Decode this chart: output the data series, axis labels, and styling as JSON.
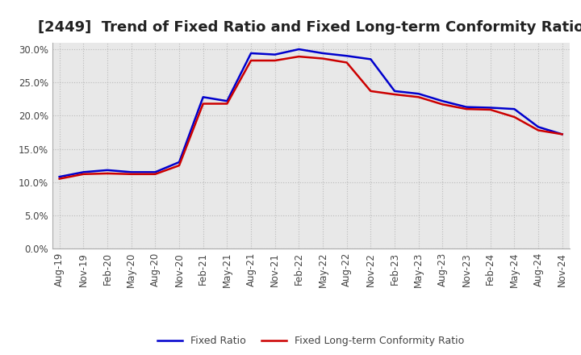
{
  "title": "[2449]  Trend of Fixed Ratio and Fixed Long-term Conformity Ratio",
  "x_labels": [
    "Aug-19",
    "Nov-19",
    "Feb-20",
    "May-20",
    "Aug-20",
    "Nov-20",
    "Feb-21",
    "May-21",
    "Aug-21",
    "Nov-21",
    "Feb-22",
    "May-22",
    "Aug-22",
    "Nov-22",
    "Feb-23",
    "May-23",
    "Aug-23",
    "Nov-23",
    "Feb-24",
    "May-24",
    "Aug-24",
    "Nov-24"
  ],
  "fixed_ratio": [
    0.108,
    0.115,
    0.118,
    0.115,
    0.115,
    0.13,
    0.228,
    0.222,
    0.294,
    0.292,
    0.3,
    0.294,
    0.29,
    0.285,
    0.237,
    0.233,
    0.222,
    0.213,
    0.212,
    0.21,
    0.183,
    0.172
  ],
  "fixed_lt_ratio": [
    0.105,
    0.112,
    0.113,
    0.112,
    0.112,
    0.125,
    0.218,
    0.218,
    0.283,
    0.283,
    0.289,
    0.286,
    0.28,
    0.237,
    0.232,
    0.228,
    0.217,
    0.21,
    0.209,
    0.198,
    0.178,
    0.172
  ],
  "fixed_ratio_color": "#0000cd",
  "fixed_lt_ratio_color": "#cc0000",
  "background_color": "#ffffff",
  "plot_bg_color": "#e8e8e8",
  "grid_color": "#bbbbbb",
  "ylim": [
    0.0,
    0.31
  ],
  "yticks": [
    0.0,
    0.05,
    0.1,
    0.15,
    0.2,
    0.25,
    0.3
  ],
  "legend_fixed_ratio": "Fixed Ratio",
  "legend_fixed_lt_ratio": "Fixed Long-term Conformity Ratio",
  "title_fontsize": 13,
  "axis_fontsize": 8.5,
  "linewidth": 1.8
}
